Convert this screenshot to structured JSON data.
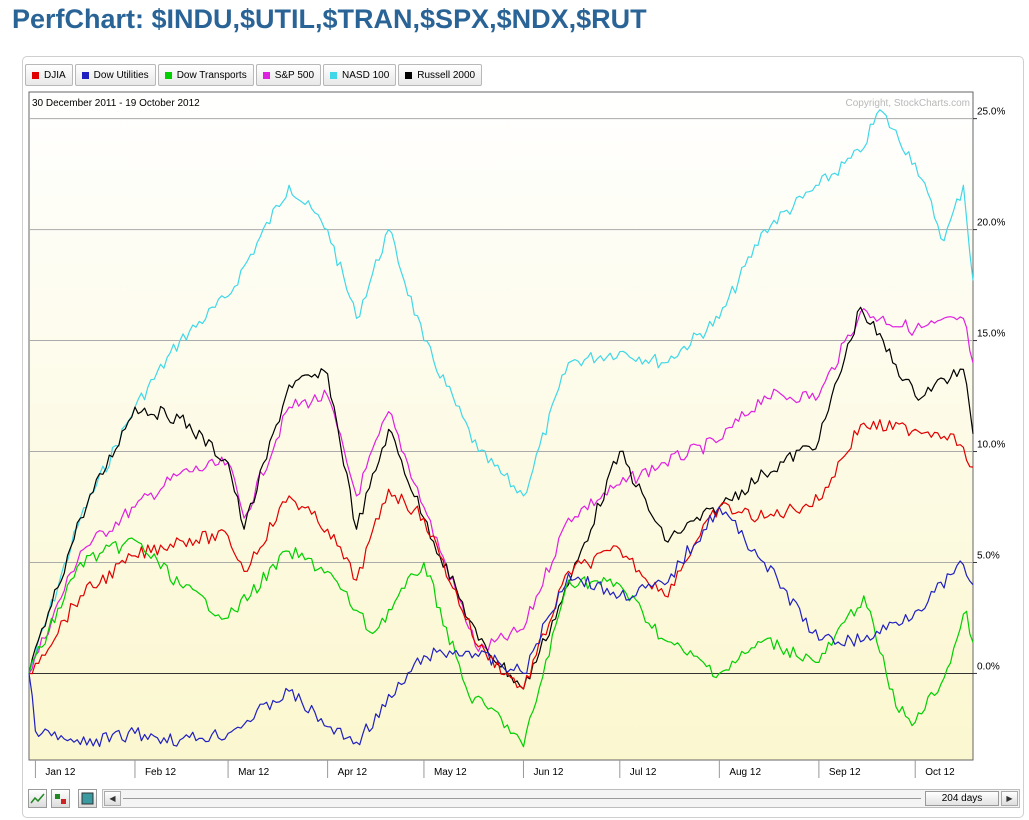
{
  "page": {
    "title": "PerfChart: $INDU,$UTIL,$TRAN,$SPX,$NDX,$RUT"
  },
  "legend": [
    {
      "label": "DJIA",
      "color": "#e00000"
    },
    {
      "label": "Dow Utilities",
      "color": "#2020c0"
    },
    {
      "label": "Dow Transports",
      "color": "#00d000"
    },
    {
      "label": "S&P 500",
      "color": "#e020e0"
    },
    {
      "label": "NASD 100",
      "color": "#40d8e8"
    },
    {
      "label": "Russell 2000",
      "color": "#000000"
    }
  ],
  "toolbar": {
    "days_label": "204 days",
    "left_arrow": "◀",
    "right_arrow": "▶"
  },
  "chart_data": {
    "type": "line",
    "date_range_label": "30 December 2011 - 19 October 2012",
    "copyright": "Copyright, StockCharts.com",
    "x_tick_labels": [
      "Jan 12",
      "Feb 12",
      "Mar 12",
      "Apr 12",
      "May 12",
      "Jun 12",
      "Jul 12",
      "Aug 12",
      "Sep 12",
      "Oct 12"
    ],
    "x_tick_dates": [
      "2012-01-01",
      "2012-02-01",
      "2012-03-01",
      "2012-04-01",
      "2012-05-01",
      "2012-06-01",
      "2012-07-01",
      "2012-08-01",
      "2012-09-01",
      "2012-10-01"
    ],
    "x_range": [
      "2011-12-30",
      "2012-10-19"
    ],
    "y_ticks": [
      0,
      5,
      10,
      15,
      20,
      25
    ],
    "y_tick_labels": [
      "0.0%",
      "5.0%",
      "10.0%",
      "15.0%",
      "20.0%",
      "25.0%"
    ],
    "ylim": [
      -3.9,
      26.2
    ],
    "y_axis_position": "right",
    "grid": true,
    "legend_placement": "top-left",
    "series": [
      {
        "name": "DJIA",
        "color": "#e00000",
        "x": [
          "2011-12-30",
          "2012-01-15",
          "2012-02-01",
          "2012-02-15",
          "2012-03-01",
          "2012-03-06",
          "2012-03-20",
          "2012-04-01",
          "2012-04-10",
          "2012-04-20",
          "2012-05-01",
          "2012-05-18",
          "2012-06-01",
          "2012-06-15",
          "2012-07-01",
          "2012-07-15",
          "2012-07-25",
          "2012-08-01",
          "2012-08-15",
          "2012-09-01",
          "2012-09-14",
          "2012-10-01",
          "2012-10-12",
          "2012-10-19"
        ],
        "values": [
          0,
          3.5,
          5.3,
          6.0,
          6.2,
          4.6,
          8.0,
          6.5,
          4.2,
          8.3,
          7.0,
          1.2,
          -0.7,
          4.6,
          5.6,
          3.5,
          6.0,
          7.5,
          7.0,
          7.8,
          11.2,
          11.0,
          10.8,
          9.3
        ]
      },
      {
        "name": "Dow Utilities",
        "color": "#2020c0",
        "x": [
          "2011-12-30",
          "2012-01-01",
          "2012-01-15",
          "2012-02-01",
          "2012-02-15",
          "2012-03-01",
          "2012-03-20",
          "2012-04-01",
          "2012-04-10",
          "2012-05-01",
          "2012-05-15",
          "2012-06-01",
          "2012-06-15",
          "2012-07-01",
          "2012-07-15",
          "2012-08-01",
          "2012-08-15",
          "2012-09-01",
          "2012-09-15",
          "2012-10-01",
          "2012-10-16",
          "2012-10-19"
        ],
        "values": [
          0,
          -2.6,
          -3.2,
          -2.7,
          -3.0,
          -2.7,
          -0.8,
          -2.4,
          -3.1,
          0.8,
          1.0,
          0.0,
          4.5,
          3.5,
          4.0,
          7.5,
          5.0,
          1.5,
          1.5,
          2.8,
          4.9,
          4.0
        ]
      },
      {
        "name": "Dow Transports",
        "color": "#00d000",
        "x": [
          "2011-12-30",
          "2012-01-15",
          "2012-02-01",
          "2012-02-15",
          "2012-03-01",
          "2012-03-20",
          "2012-04-01",
          "2012-04-15",
          "2012-05-01",
          "2012-05-15",
          "2012-05-25",
          "2012-06-01",
          "2012-06-15",
          "2012-07-01",
          "2012-07-15",
          "2012-08-01",
          "2012-08-15",
          "2012-09-01",
          "2012-09-15",
          "2012-09-25",
          "2012-10-01",
          "2012-10-10",
          "2012-10-17",
          "2012-10-19"
        ],
        "values": [
          0,
          5.0,
          6.0,
          4.0,
          2.5,
          5.5,
          4.6,
          1.8,
          5.0,
          -1.0,
          -2.0,
          -3.3,
          4.2,
          4.0,
          1.5,
          0.0,
          1.5,
          0.5,
          3.5,
          -1.5,
          -2.2,
          -0.2,
          2.8,
          1.4
        ]
      },
      {
        "name": "S&P 500",
        "color": "#e020e0",
        "x": [
          "2011-12-30",
          "2012-01-15",
          "2012-02-01",
          "2012-02-15",
          "2012-03-01",
          "2012-03-06",
          "2012-03-20",
          "2012-04-01",
          "2012-04-10",
          "2012-04-20",
          "2012-05-01",
          "2012-05-18",
          "2012-06-01",
          "2012-06-15",
          "2012-07-01",
          "2012-07-15",
          "2012-08-01",
          "2012-08-15",
          "2012-09-01",
          "2012-09-14",
          "2012-10-01",
          "2012-10-16",
          "2012-10-19"
        ],
        "values": [
          0,
          5.5,
          7.5,
          9.0,
          9.5,
          7.0,
          12.0,
          12.5,
          8.0,
          11.8,
          7.5,
          1.0,
          2.0,
          7.0,
          8.5,
          9.5,
          10.5,
          12.5,
          12.5,
          16.3,
          15.5,
          16.0,
          14.0
        ]
      },
      {
        "name": "NASD 100",
        "color": "#40d8e8",
        "x": [
          "2011-12-30",
          "2012-01-15",
          "2012-02-01",
          "2012-02-15",
          "2012-03-01",
          "2012-03-20",
          "2012-04-01",
          "2012-04-10",
          "2012-04-20",
          "2012-05-01",
          "2012-05-18",
          "2012-06-01",
          "2012-06-15",
          "2012-07-01",
          "2012-07-15",
          "2012-08-01",
          "2012-08-15",
          "2012-09-01",
          "2012-09-14",
          "2012-09-20",
          "2012-10-01",
          "2012-10-10",
          "2012-10-16",
          "2012-10-19"
        ],
        "values": [
          0,
          7.0,
          12.0,
          15.0,
          17.0,
          22.0,
          20.0,
          16.0,
          20.0,
          15.0,
          10.0,
          8.0,
          14.0,
          14.5,
          14.0,
          16.0,
          20.0,
          22.0,
          23.5,
          25.4,
          23.0,
          19.5,
          22.0,
          17.7
        ]
      },
      {
        "name": "Russell 2000",
        "color": "#000000",
        "x": [
          "2011-12-30",
          "2012-01-15",
          "2012-02-01",
          "2012-02-15",
          "2012-03-01",
          "2012-03-06",
          "2012-03-20",
          "2012-04-01",
          "2012-04-10",
          "2012-04-20",
          "2012-05-01",
          "2012-05-18",
          "2012-06-01",
          "2012-06-15",
          "2012-07-01",
          "2012-07-15",
          "2012-08-01",
          "2012-08-15",
          "2012-09-01",
          "2012-09-14",
          "2012-10-01",
          "2012-10-16",
          "2012-10-19"
        ],
        "values": [
          0,
          7.0,
          12.0,
          11.5,
          9.5,
          6.5,
          13.0,
          13.5,
          6.5,
          11.0,
          7.0,
          1.5,
          -0.7,
          4.0,
          10.0,
          6.0,
          7.5,
          9.0,
          10.5,
          16.5,
          12.5,
          13.7,
          10.8
        ]
      }
    ]
  }
}
